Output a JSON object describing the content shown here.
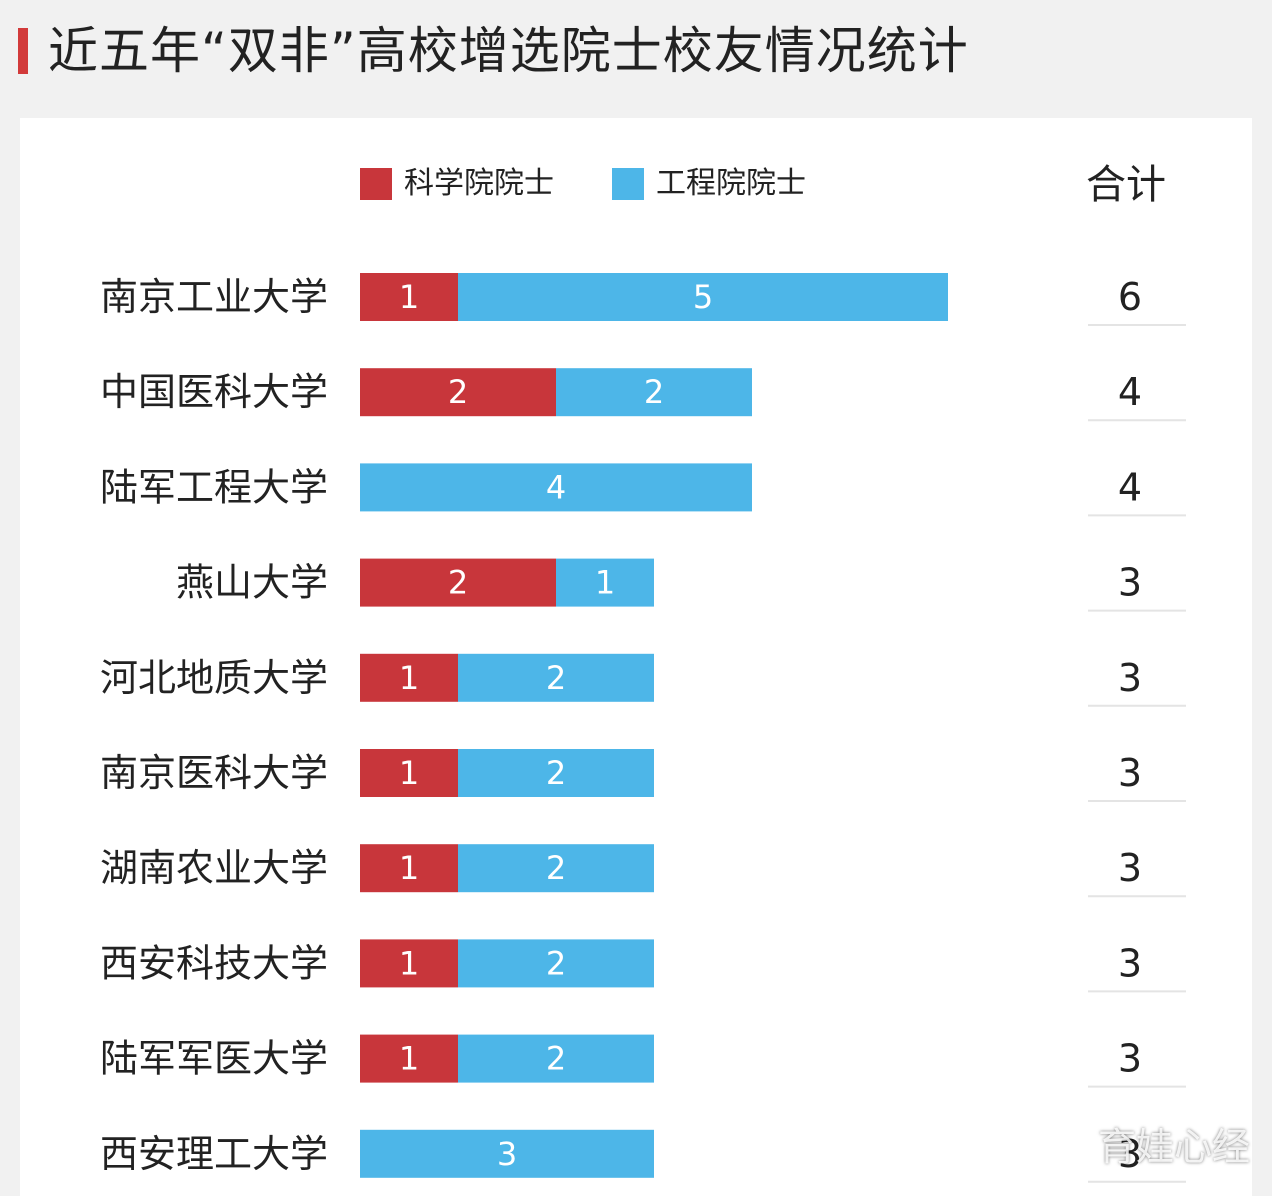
{
  "title": "近五年“双非”高校增选院士校友情况统计",
  "chart_data": {
    "type": "bar",
    "orientation": "horizontal",
    "stacked": true,
    "categories": [
      "南京工业大学",
      "中国医科大学",
      "陆军工程大学",
      "燕山大学",
      "河北地质大学",
      "南京医科大学",
      "湖南农业大学",
      "西安科技大学",
      "陆军军医大学",
      "西安理工大学"
    ],
    "series": [
      {
        "name": "科学院院士",
        "color": "#c8363b",
        "values": [
          1,
          2,
          0,
          2,
          1,
          1,
          1,
          1,
          1,
          0
        ]
      },
      {
        "name": "工程院院士",
        "color": "#4db6e8",
        "values": [
          5,
          2,
          4,
          1,
          2,
          2,
          2,
          2,
          2,
          3
        ]
      }
    ],
    "totals_header": "合计",
    "totals": [
      6,
      4,
      4,
      3,
      3,
      3,
      3,
      3,
      3,
      3
    ],
    "legend_position": "top",
    "grid": false
  },
  "watermark": "育娃心经"
}
